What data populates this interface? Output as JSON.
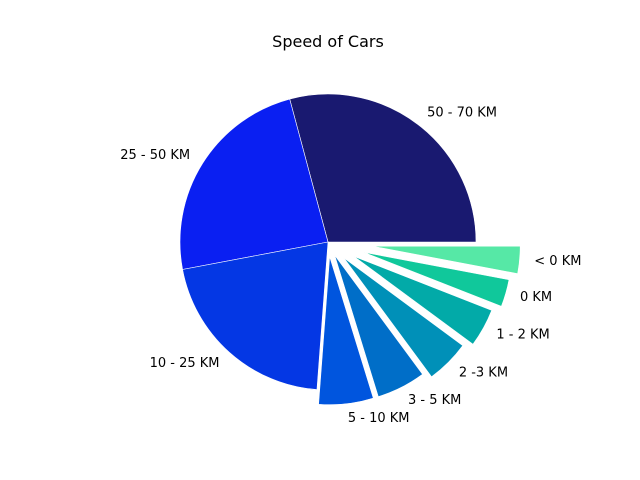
{
  "chart_data": {
    "type": "pie",
    "title": "Speed of Cars",
    "categories": [
      "50 - 70 KM",
      "25 - 50 KM",
      "10 - 25 KM",
      "5 - 10 KM",
      "3 - 5 KM",
      "2 -3 KM",
      "1 - 2 KM",
      "0 KM",
      "< 0 KM"
    ],
    "values": [
      24.5,
      20.0,
      17.5,
      5.0,
      4.5,
      4.0,
      3.5,
      2.5,
      2.5
    ],
    "explode": [
      0,
      0,
      0,
      0.1,
      0.1,
      0.15,
      0.2,
      0.25,
      0.3
    ],
    "colors": [
      "#191970",
      "#0a1ff2",
      "#0437e4",
      "#0055de",
      "#006ec8",
      "#0090b8",
      "#02aaa8",
      "#10c89b",
      "#56e8a6"
    ],
    "start_angle_deg": 0,
    "direction": "counterclockwise"
  }
}
